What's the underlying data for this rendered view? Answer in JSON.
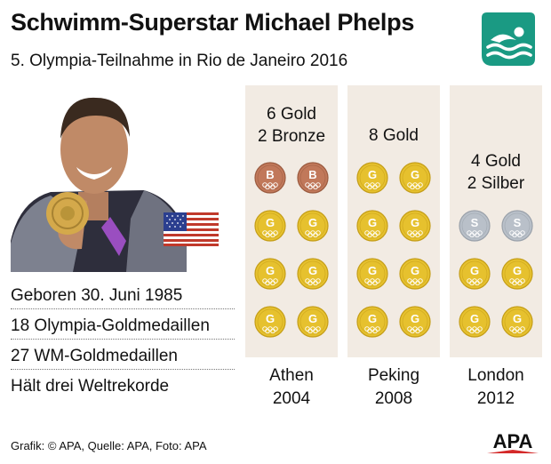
{
  "header": {
    "title": "Schwimm-Superstar Michael Phelps",
    "subtitle": "5. Olympia-Teilnahme in Rio de Janeiro 2016"
  },
  "icons": {
    "swim_logo": "swimming-pictogram-icon",
    "flag": "usa-flag-icon",
    "photo": "athlete-photo-with-gold-medal"
  },
  "colors": {
    "accent_teal": "#1a9a83",
    "gold": "#e6c12e",
    "bronze": "#c1785a",
    "silver": "#b9c0c9",
    "panel_bg": "#f2ebe3"
  },
  "facts": [
    "Geboren 30. Juni 1985",
    "18 Olympia-Goldmedaillen",
    "27 WM-Goldmedaillen",
    "Hält drei Weltrekorde"
  ],
  "medal_letters": {
    "gold": "G",
    "silver": "S",
    "bronze": "B"
  },
  "games": [
    {
      "city": "Athen",
      "year": "2004",
      "summary": [
        "6 Gold",
        "2 Bronze"
      ],
      "medals": [
        "bronze",
        "bronze",
        "gold",
        "gold",
        "gold",
        "gold",
        "gold",
        "gold"
      ]
    },
    {
      "city": "Peking",
      "year": "2008",
      "summary": [
        "8 Gold"
      ],
      "medals": [
        "gold",
        "gold",
        "gold",
        "gold",
        "gold",
        "gold",
        "gold",
        "gold"
      ]
    },
    {
      "city": "London",
      "year": "2012",
      "summary": [
        "4 Gold",
        "2 Silber"
      ],
      "medals": [
        "silver",
        "silver",
        "gold",
        "gold",
        "gold",
        "gold"
      ]
    }
  ],
  "footer": {
    "credit": "Grafik: © APA, Quelle: APA, Foto: APA",
    "logo_text": "APA"
  }
}
